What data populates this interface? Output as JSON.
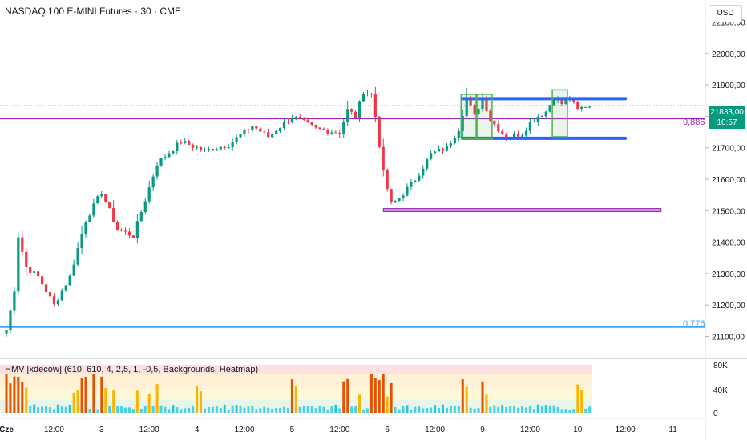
{
  "header": {
    "title": "NASDAQ 100 E-MINI Futures · 30 · CME",
    "currency": "USD"
  },
  "indicator": {
    "title": "HMV [xdecow] (610, 610, 4, 2,5, 1, -0,5, Backgrounds, Heatmap)",
    "ticks": [
      "80K",
      "40K",
      "0"
    ]
  },
  "price_badge": {
    "price": "21833,00",
    "countdown": "10:57"
  },
  "levels": [
    {
      "label": "0,886",
      "color": "#9c27b0"
    },
    {
      "label": "0,776",
      "color": "#42a5f5"
    }
  ],
  "colors": {
    "up": "#089981",
    "down": "#f23645",
    "purple": "#9c27b0",
    "blue": "#2962ff",
    "lightblue": "#42a5f5",
    "green": "#4caf50"
  },
  "chart_data": {
    "type": "candlestick",
    "title": "NASDAQ 100 E-MINI Futures · 30 · CME",
    "price_ticks": [
      "22100,00",
      "22000,00",
      "21900,00",
      "21800,00",
      "21700,00",
      "21600,00",
      "21500,00",
      "21400,00",
      "21300,00",
      "21200,00",
      "21100,00"
    ],
    "price_tick_values": [
      22100,
      22000,
      21900,
      21800,
      21700,
      21600,
      21500,
      21400,
      21300,
      21200,
      21100
    ],
    "ylim": [
      21030,
      22170
    ],
    "x_ticks": [
      "Cze",
      "12:00",
      "3",
      "12:00",
      "4",
      "12:00",
      "5",
      "12:00",
      "6",
      "12:00",
      "9",
      "12:00",
      "10",
      "12:00",
      "11"
    ],
    "x_tick_index": [
      0,
      12,
      24,
      36,
      48,
      60,
      72,
      84,
      96,
      108,
      120,
      132,
      144,
      156,
      168
    ],
    "horizontal_levels": [
      21793,
      21130,
      21835
    ],
    "rectangles": [
      {
        "kind": "range-top",
        "y": 21856,
        "x_start": 115,
        "x_end": 156
      },
      {
        "kind": "range-bottom",
        "y": 21730,
        "x_start": 115,
        "x_end": 156
      },
      {
        "kind": "support-zone",
        "y_top": 21507,
        "y_bottom": 21502,
        "x_start": 95,
        "x_end": 165
      },
      {
        "kind": "highlight",
        "y_top": 21870,
        "y_bottom": 21728,
        "x_start": 115,
        "x_end": 118
      },
      {
        "kind": "highlight",
        "y_top": 21870,
        "y_bottom": 21728,
        "x_start": 119,
        "x_end": 122
      },
      {
        "kind": "highlight",
        "y_top": 21884,
        "y_bottom": 21735,
        "x_start": 138,
        "x_end": 141
      }
    ],
    "close_anchors": [
      [
        0,
        21120
      ],
      [
        1,
        21180
      ],
      [
        2,
        21250
      ],
      [
        3,
        21420
      ],
      [
        5,
        21320
      ],
      [
        8,
        21290
      ],
      [
        12,
        21200
      ],
      [
        16,
        21290
      ],
      [
        20,
        21470
      ],
      [
        24,
        21560
      ],
      [
        28,
        21440
      ],
      [
        32,
        21420
      ],
      [
        38,
        21650
      ],
      [
        44,
        21720
      ],
      [
        50,
        21690
      ],
      [
        56,
        21710
      ],
      [
        62,
        21770
      ],
      [
        66,
        21735
      ],
      [
        72,
        21800
      ],
      [
        78,
        21760
      ],
      [
        84,
        21748
      ],
      [
        86,
        21820
      ],
      [
        88,
        21800
      ],
      [
        90,
        21880
      ],
      [
        92,
        21870
      ],
      [
        93,
        21800
      ],
      [
        95,
        21620
      ],
      [
        97,
        21520
      ],
      [
        99,
        21540
      ],
      [
        103,
        21600
      ],
      [
        107,
        21680
      ],
      [
        111,
        21700
      ],
      [
        114,
        21760
      ],
      [
        116,
        21860
      ],
      [
        118,
        21800
      ],
      [
        120,
        21860
      ],
      [
        122,
        21790
      ],
      [
        124,
        21760
      ],
      [
        126,
        21730
      ],
      [
        128,
        21740
      ],
      [
        130,
        21745
      ],
      [
        132,
        21780
      ],
      [
        134,
        21800
      ],
      [
        136,
        21815
      ],
      [
        138,
        21860
      ],
      [
        140,
        21840
      ],
      [
        142,
        21858
      ],
      [
        144,
        21820
      ],
      [
        146,
        21833
      ]
    ],
    "volume_hint": "heatmap volume bars, max ~80K"
  }
}
